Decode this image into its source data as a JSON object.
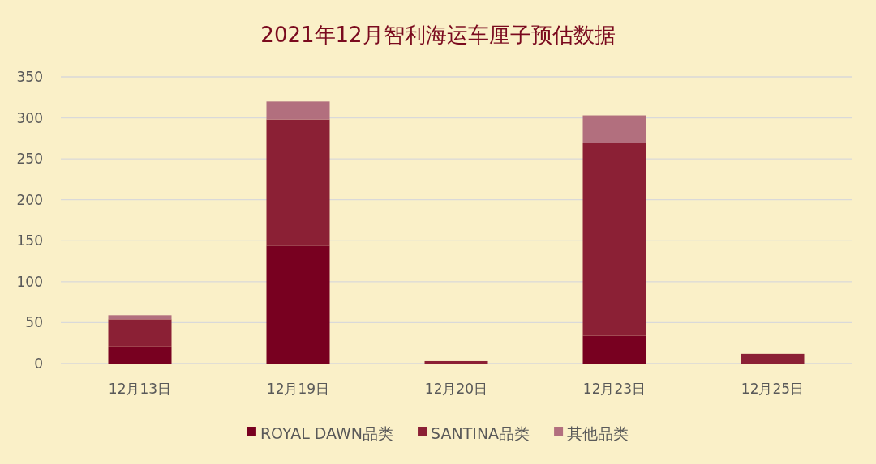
{
  "chart_data": {
    "type": "bar",
    "title": "2021年12月智利海运车厘子预估数据",
    "categories": [
      "12月13日",
      "12月19日",
      "12月20日",
      "12月23日",
      "12月25日"
    ],
    "stacked": true,
    "series": [
      {
        "name": "ROYAL DAWN品类",
        "color": "#780020",
        "values": [
          21,
          144,
          0,
          34,
          0
        ]
      },
      {
        "name": "SANTINA品类",
        "color": "#8b2035",
        "values": [
          33,
          154,
          3,
          235,
          12
        ]
      },
      {
        "name": "其他品类",
        "color": "#b26f7e",
        "values": [
          5,
          22,
          0,
          34,
          0
        ]
      }
    ],
    "ylim": [
      0,
      350
    ],
    "yticks": [
      0,
      50,
      100,
      150,
      200,
      250,
      300,
      350
    ],
    "grid": "y",
    "legend": "bottom"
  }
}
